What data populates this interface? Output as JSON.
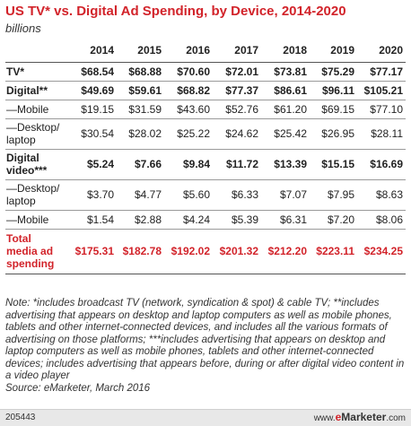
{
  "chart_data": {
    "type": "table",
    "title": "US TV* vs. Digital Ad Spending, by Device, 2014-2020",
    "subtitle": "billions",
    "columns": [
      "",
      "2014",
      "2015",
      "2016",
      "2017",
      "2018",
      "2019",
      "2020"
    ],
    "rows": [
      {
        "label": "TV*",
        "values": [
          "$68.54",
          "$68.88",
          "$70.60",
          "$72.01",
          "$73.81",
          "$75.29",
          "$77.17"
        ],
        "bold": true,
        "height": 1
      },
      {
        "label": "Digital**",
        "values": [
          "$49.69",
          "$59.61",
          "$68.82",
          "$77.37",
          "$86.61",
          "$96.11",
          "$105.21"
        ],
        "bold": true,
        "height": 1
      },
      {
        "label": "—Mobile",
        "values": [
          "$19.15",
          "$31.59",
          "$43.60",
          "$52.76",
          "$61.20",
          "$69.15",
          "$77.10"
        ],
        "height": 1
      },
      {
        "label": "—Desktop/\nlaptop",
        "values": [
          "$30.54",
          "$28.02",
          "$25.22",
          "$24.62",
          "$25.42",
          "$26.95",
          "$28.11"
        ],
        "height": 2
      },
      {
        "label": "Digital\nvideo***",
        "values": [
          "$5.24",
          "$7.66",
          "$9.84",
          "$11.72",
          "$13.39",
          "$15.15",
          "$16.69"
        ],
        "bold": true,
        "height": 2
      },
      {
        "label": "—Desktop/\nlaptop",
        "values": [
          "$3.70",
          "$4.77",
          "$5.60",
          "$6.33",
          "$7.07",
          "$7.95",
          "$8.63"
        ],
        "height": 2
      },
      {
        "label": "—Mobile",
        "values": [
          "$1.54",
          "$2.88",
          "$4.24",
          "$5.39",
          "$6.31",
          "$7.20",
          "$8.06"
        ],
        "height": 1
      },
      {
        "label": "Total\nmedia ad\nspending",
        "values": [
          "$175.31",
          "$182.78",
          "$192.02",
          "$201.32",
          "$212.20",
          "$223.11",
          "$234.25"
        ],
        "total": true,
        "height": 3
      }
    ]
  },
  "note": "Note: *includes broadcast TV (network, syndication & spot) & cable TV; **includes advertising that appears on desktop and laptop computers as well as mobile phones, tablets and other internet-connected devices, and includes all the various formats of advertising on those platforms; ***includes advertising that appears on desktop and laptop computers as well as mobile phones, tablets and other internet-connected devices; includes advertising that appears before, during or after digital video content in a video player",
  "source": "Source: eMarketer, March 2016",
  "footer": {
    "chart_id": "205443",
    "brand_prefix": "www.",
    "brand_e": "e",
    "brand_main": "Marketer",
    "brand_suffix": ".com"
  }
}
